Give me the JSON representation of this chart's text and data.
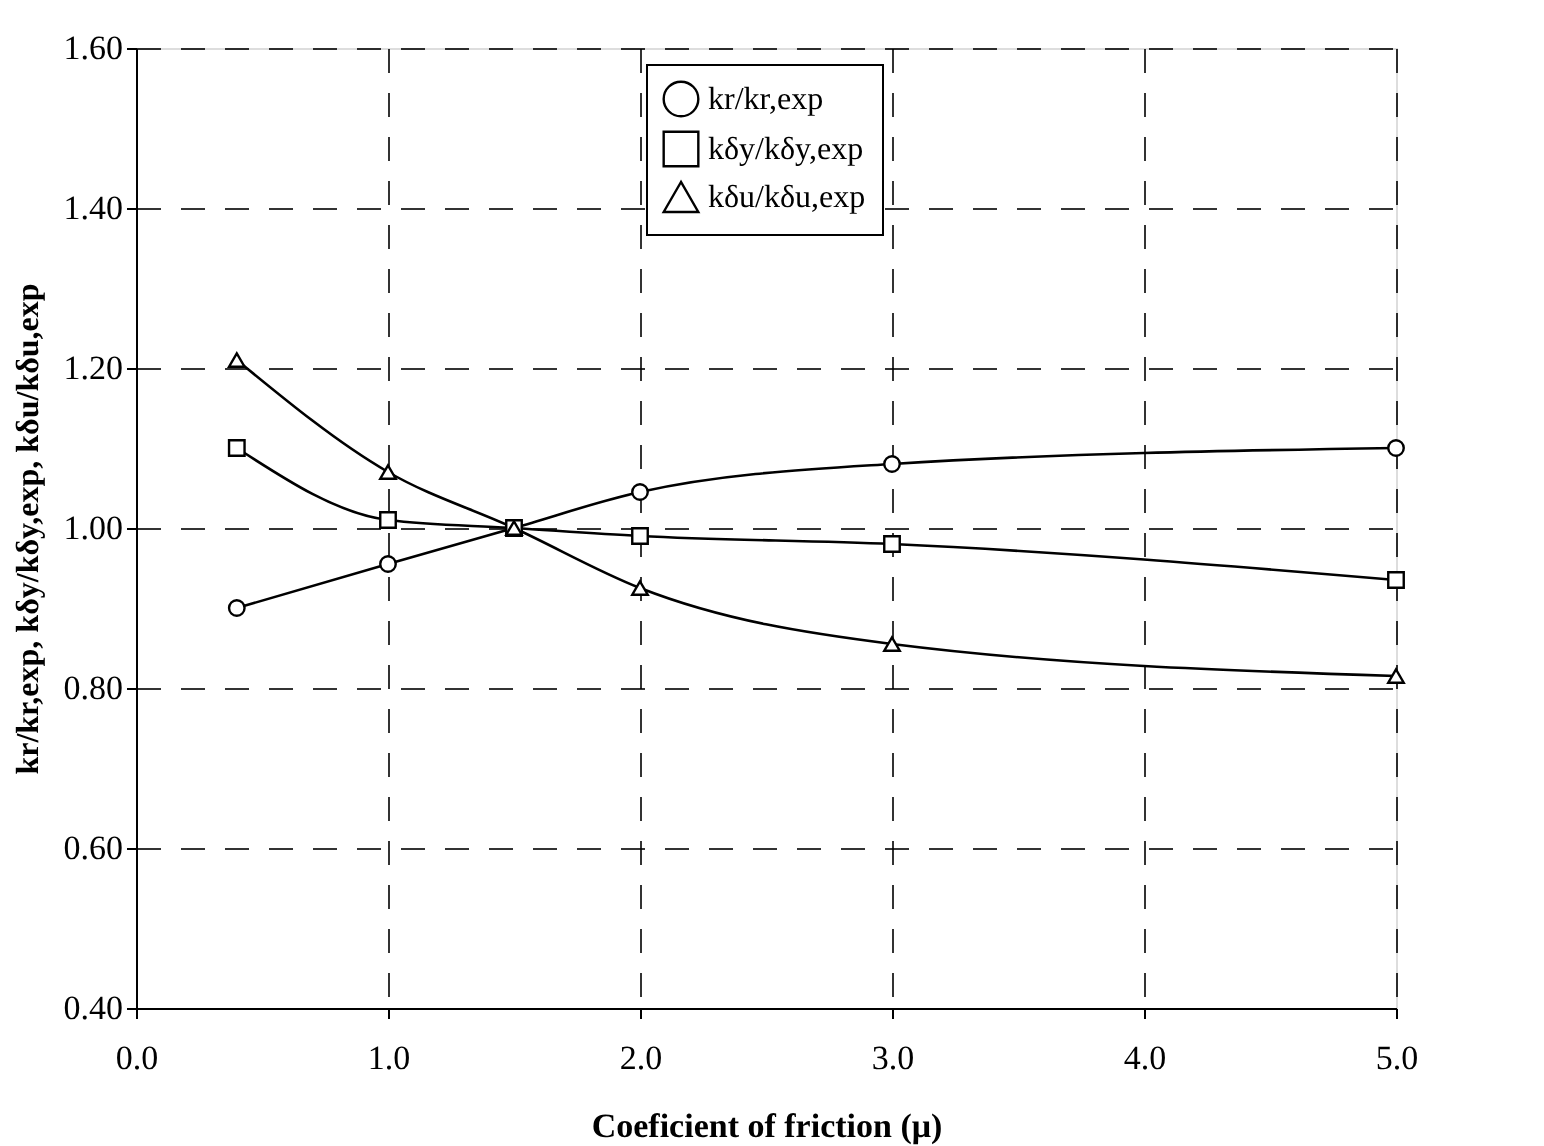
{
  "chart_data": {
    "type": "line",
    "xlabel": "Coeficient of friction (μ)",
    "ylabel": "kr/kr,exp, kδy/kδy,exp, kδu/kδu,exp",
    "x": [
      0.4,
      1.0,
      1.5,
      2.0,
      3.0,
      5.0
    ],
    "series": [
      {
        "name": "kr/kr,exp",
        "color": "#000000",
        "marker": "circle",
        "values": [
          0.9,
          0.955,
          1.0,
          1.045,
          1.08,
          1.1
        ]
      },
      {
        "name": "kδy/kδy,exp",
        "color": "#000000",
        "marker": "square",
        "values": [
          1.1,
          1.01,
          1.0,
          0.99,
          0.98,
          0.935
        ]
      },
      {
        "name": "kδu/kδu,exp",
        "color": "#000000",
        "marker": "triangle",
        "values": [
          1.21,
          1.07,
          1.0,
          0.925,
          0.855,
          0.815
        ]
      }
    ],
    "xlim": [
      0.0,
      5.0
    ],
    "xticks": [
      {
        "value": 0,
        "label": "0.0"
      },
      {
        "value": 1,
        "label": "1.0"
      },
      {
        "value": 2,
        "label": "2.0"
      },
      {
        "value": 3,
        "label": "3.0"
      },
      {
        "value": 4,
        "label": "4.0"
      },
      {
        "value": 5,
        "label": "5.0"
      }
    ],
    "ylim": [
      0.4,
      1.6
    ],
    "yticks": [
      {
        "value": 0.4,
        "label": "0.40"
      },
      {
        "value": 0.6,
        "label": "0.60"
      },
      {
        "value": 0.8,
        "label": "0.80"
      },
      {
        "value": 1.0,
        "label": "1.00"
      },
      {
        "value": 1.2,
        "label": "1.20"
      },
      {
        "value": 1.4,
        "label": "1.40"
      },
      {
        "value": 1.6,
        "label": "1.60"
      }
    ],
    "grid": true,
    "legend": "top",
    "line_style": "solid"
  }
}
